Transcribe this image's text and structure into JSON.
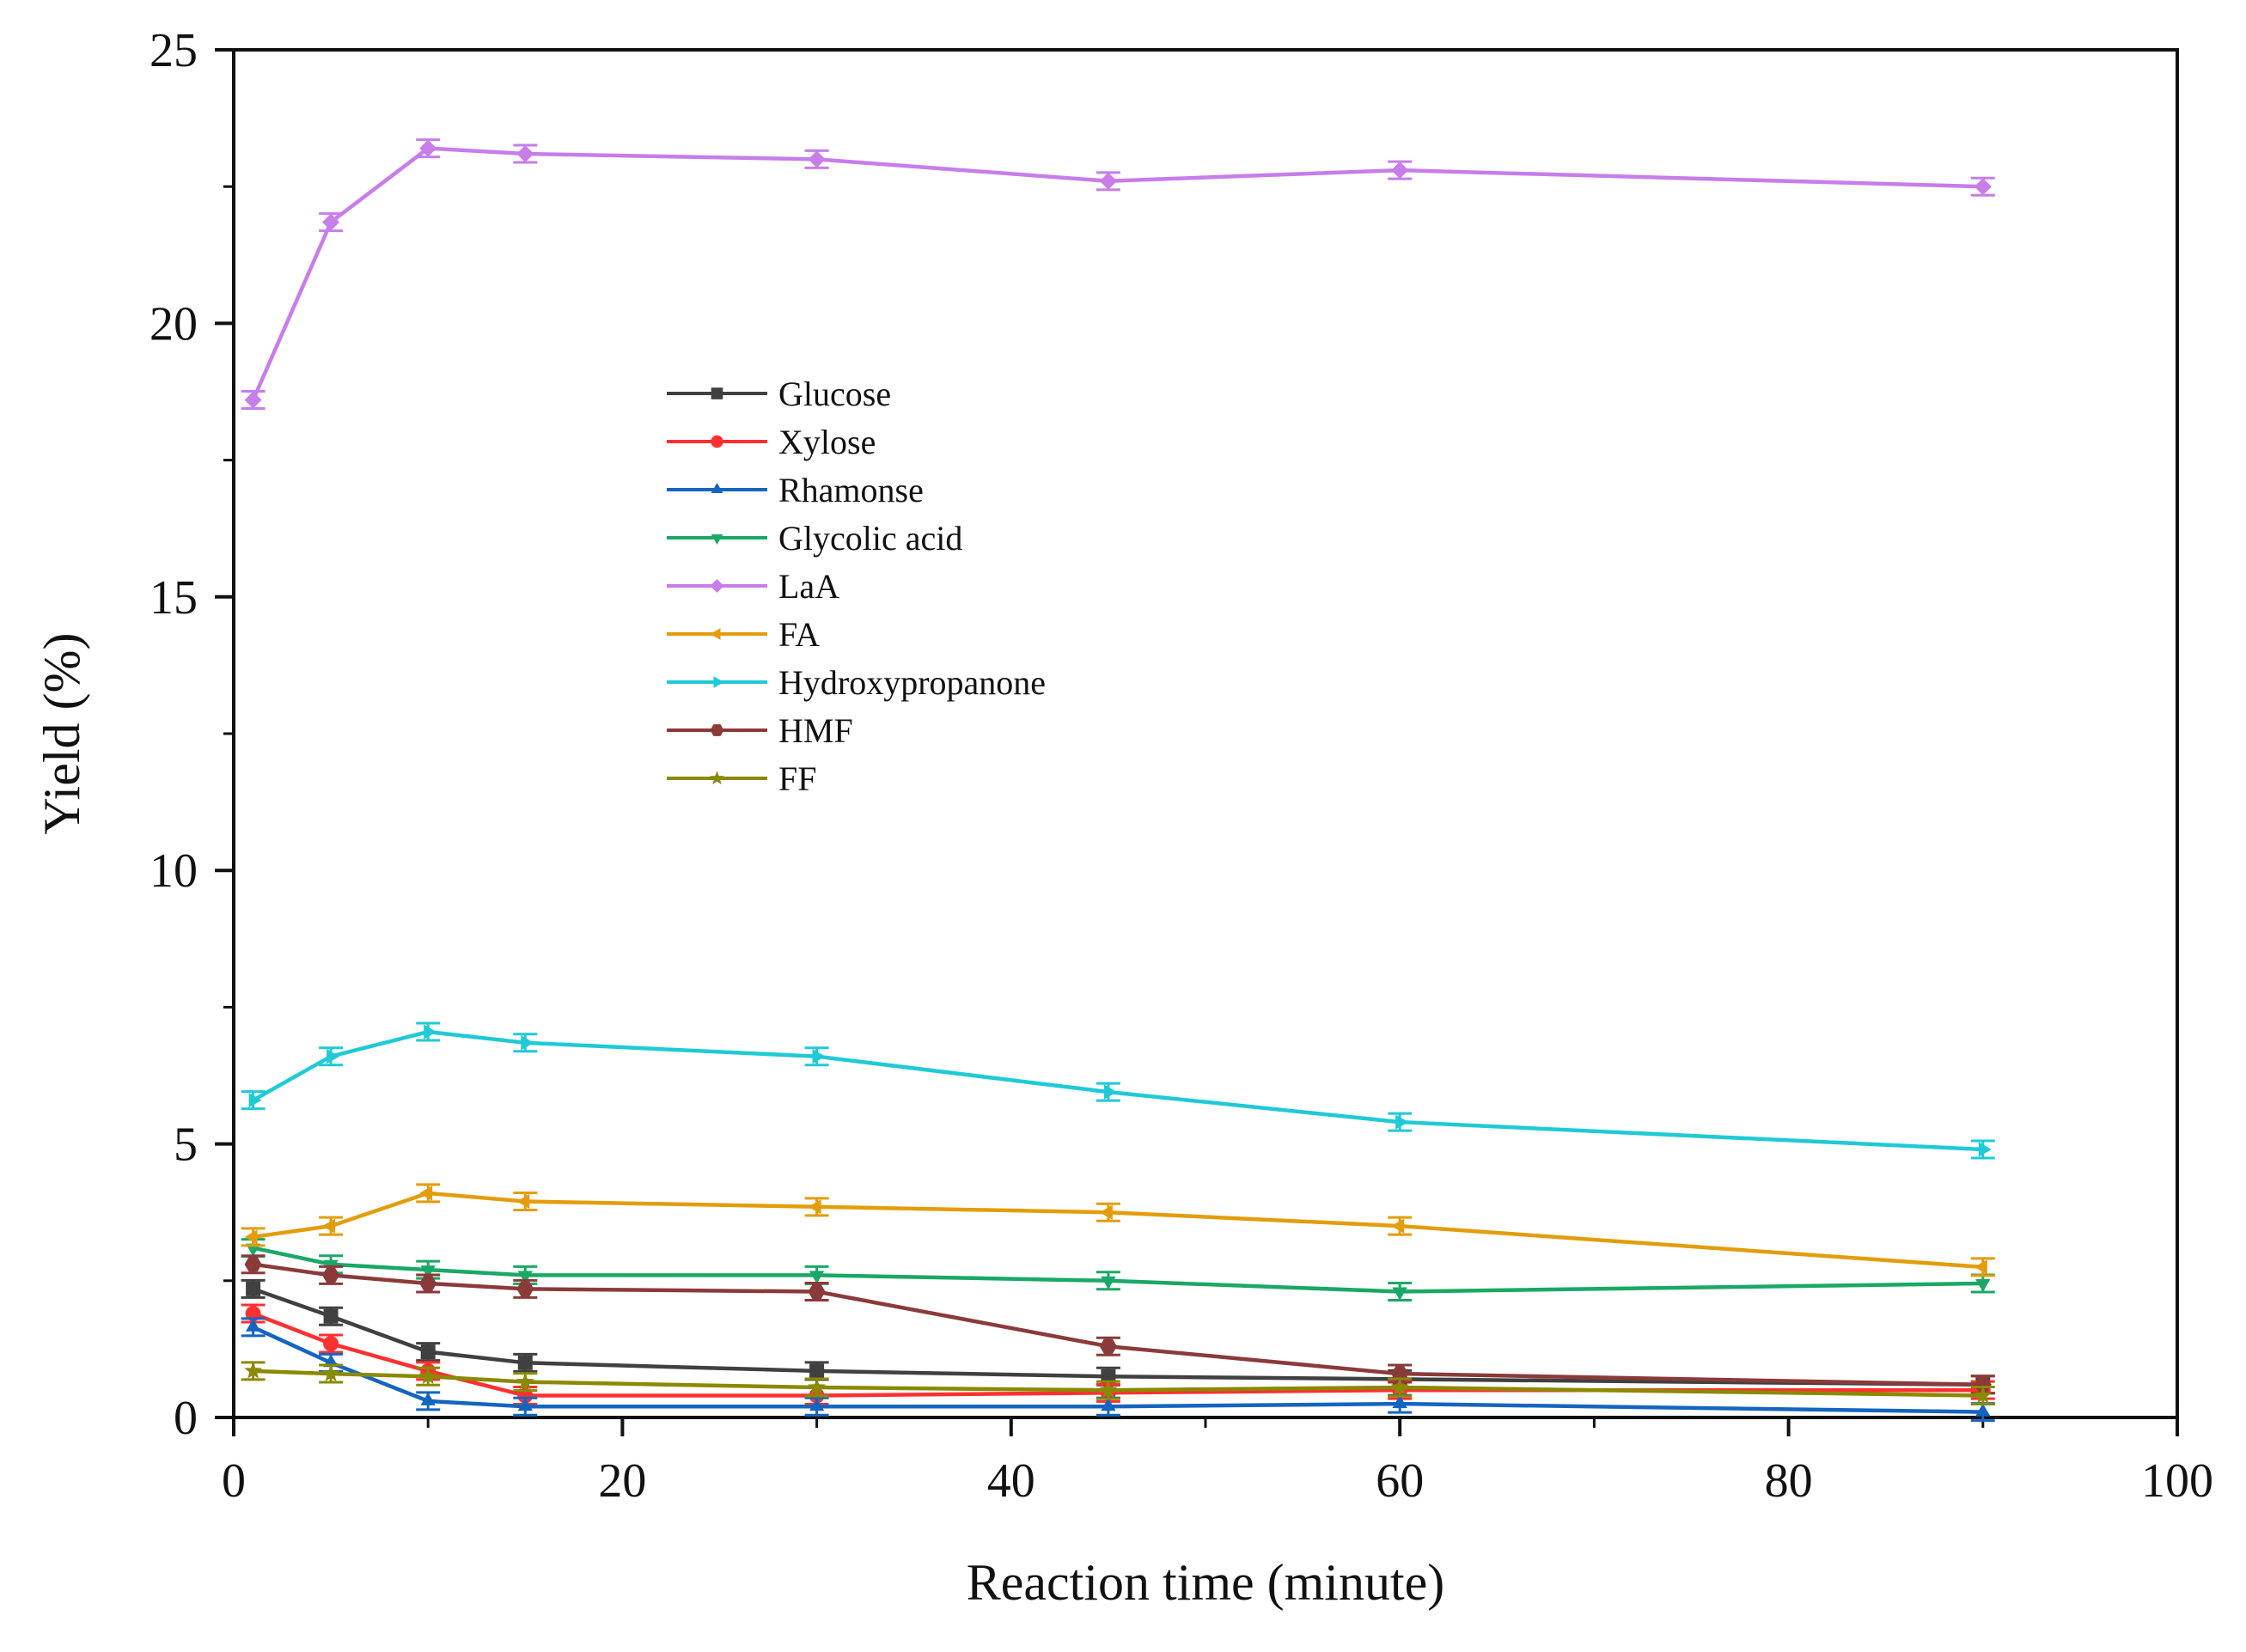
{
  "chart_data": {
    "type": "line",
    "title": "",
    "xlabel": "Reaction time (minute)",
    "ylabel": "Yield (%)",
    "xlim": [
      0,
      100
    ],
    "ylim": [
      0,
      25
    ],
    "xticks": [
      0,
      20,
      40,
      60,
      80,
      100
    ],
    "yticks": [
      0,
      5,
      10,
      15,
      20,
      25
    ],
    "xtick_labels": [
      "0",
      "20",
      "40",
      "60",
      "80",
      "100"
    ],
    "ytick_labels": [
      "0",
      "5",
      "10",
      "15",
      "20",
      "25"
    ],
    "grid": false,
    "legend_position": "center-left",
    "x": [
      1,
      5,
      10,
      15,
      30,
      45,
      60,
      90
    ],
    "series": [
      {
        "name": "Glucose",
        "color": "#404040",
        "marker": "square",
        "values": [
          2.35,
          1.85,
          1.2,
          1.0,
          0.85,
          0.75,
          0.7,
          0.6
        ]
      },
      {
        "name": "Xylose",
        "color": "#ff3030",
        "marker": "circle",
        "values": [
          1.9,
          1.35,
          0.85,
          0.4,
          0.4,
          0.45,
          0.5,
          0.5
        ]
      },
      {
        "name": "Rhamonse",
        "color": "#1565c0",
        "marker": "triangle-up",
        "values": [
          1.65,
          1.0,
          0.3,
          0.2,
          0.2,
          0.2,
          0.25,
          0.1
        ]
      },
      {
        "name": "Glycolic acid",
        "color": "#1aa866",
        "marker": "triangle-down",
        "values": [
          3.1,
          2.8,
          2.7,
          2.6,
          2.6,
          2.5,
          2.3,
          2.45
        ]
      },
      {
        "name": "LaA",
        "color": "#c77dea",
        "marker": "diamond",
        "values": [
          18.6,
          21.85,
          23.2,
          23.1,
          23.0,
          22.6,
          22.8,
          22.5
        ]
      },
      {
        "name": "FA",
        "color": "#e39d0b",
        "marker": "triangle-left",
        "values": [
          3.3,
          3.5,
          4.1,
          3.95,
          3.85,
          3.75,
          3.5,
          2.75
        ]
      },
      {
        "name": "Hydroxypropanone",
        "color": "#1fcad6",
        "marker": "triangle-right",
        "values": [
          5.8,
          6.6,
          7.05,
          6.85,
          6.6,
          5.95,
          5.4,
          4.9
        ]
      },
      {
        "name": "HMF",
        "color": "#8b3a3a",
        "marker": "hexagon",
        "values": [
          2.8,
          2.6,
          2.45,
          2.35,
          2.3,
          1.3,
          0.8,
          0.6
        ]
      },
      {
        "name": "FF",
        "color": "#8a8a00",
        "marker": "star",
        "values": [
          0.85,
          0.8,
          0.75,
          0.65,
          0.55,
          0.5,
          0.55,
          0.4
        ]
      }
    ]
  }
}
